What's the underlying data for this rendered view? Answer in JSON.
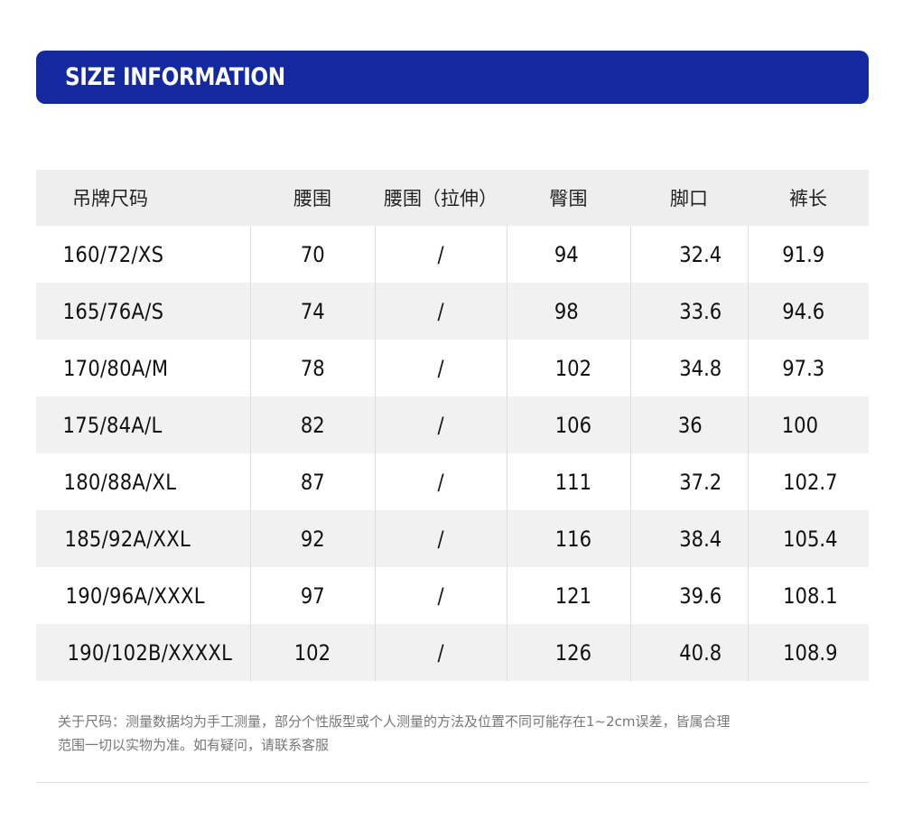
{
  "banner": {
    "title": "SIZE INFORMATION",
    "background_color": "#1428a0"
  },
  "table": {
    "headers": [
      "吊牌尺码",
      "腰围",
      "腰围（拉伸）",
      "臀围",
      "脚口",
      "裤长"
    ],
    "rows": [
      [
        "160/72/XS",
        "70",
        "/",
        "94",
        "32.4",
        "91.9"
      ],
      [
        "165/76A/S",
        "74",
        "/",
        "98",
        "33.6",
        "94.6"
      ],
      [
        "170/80A/M",
        "78",
        "/",
        "102",
        "34.8",
        "97.3"
      ],
      [
        "175/84A/L",
        "82",
        "/",
        "106",
        "36",
        "100"
      ],
      [
        "180/88A/XL",
        "87",
        "/",
        "111",
        "37.2",
        "102.7"
      ],
      [
        "185/92A/XXL",
        "92",
        "/",
        "116",
        "38.4",
        "105.4"
      ],
      [
        "190/96A/XXXL",
        "97",
        "/",
        "121",
        "39.6",
        "108.1"
      ],
      [
        "190/102B/XXXXL",
        "102",
        "/",
        "126",
        "40.8",
        "108.9"
      ]
    ]
  },
  "note": {
    "line1": "关于尺码：测量数据均为手工测量，部分个性版型或个人测量的方法及位置不同可能存在1~2cm误差，皆属合理",
    "line2": "范围一切以实物为准。如有疑问，请联系客服"
  }
}
